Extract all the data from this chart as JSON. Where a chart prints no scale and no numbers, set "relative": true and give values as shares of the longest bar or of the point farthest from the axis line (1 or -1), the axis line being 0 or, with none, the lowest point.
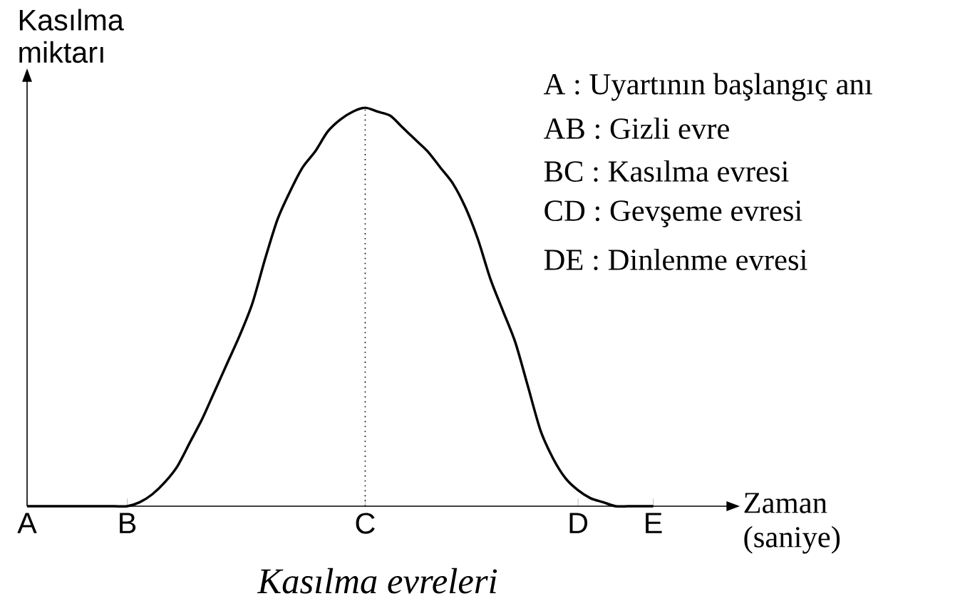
{
  "chart_data": {
    "type": "line",
    "relative": true,
    "title": "Kasılma evreleri",
    "xlabel": "Zaman (saniye)",
    "ylabel": "Kasılma miktarı",
    "categories": [
      "A",
      null,
      null,
      null,
      null,
      null,
      null,
      null,
      "B",
      null,
      null,
      null,
      null,
      null,
      null,
      null,
      null,
      null,
      null,
      null,
      null,
      null,
      null,
      null,
      null,
      null,
      null,
      "C",
      null,
      null,
      null,
      null,
      null,
      null,
      null,
      null,
      null,
      null,
      null,
      null,
      null,
      null,
      null,
      null,
      "D",
      null,
      null,
      null,
      null,
      null,
      "E"
    ],
    "values": [
      0,
      0,
      0,
      0,
      0,
      0,
      0,
      0,
      0,
      0.01,
      0.03,
      0.06,
      0.1,
      0.16,
      0.22,
      0.29,
      0.36,
      0.43,
      0.51,
      0.62,
      0.72,
      0.79,
      0.85,
      0.89,
      0.94,
      0.97,
      0.99,
      1,
      0.99,
      0.98,
      0.95,
      0.92,
      0.89,
      0.85,
      0.81,
      0.75,
      0.67,
      0.57,
      0.49,
      0.41,
      0.3,
      0.19,
      0.12,
      0.07,
      0.04,
      0.02,
      0.01,
      0,
      0,
      0,
      0
    ],
    "color": "#000000",
    "marker": "none",
    "line_style": "solid",
    "grid": false,
    "ref_lines": [
      {
        "axis": "x",
        "value": "C",
        "line_style": "dotted"
      }
    ],
    "annotations": [
      "A : Uyartının başlangıç anı",
      "AB : Gizli evre",
      "BC : Kasılma evresi",
      "CD : Gevşeme evresi",
      "DE : Dinlenme evresi"
    ]
  }
}
